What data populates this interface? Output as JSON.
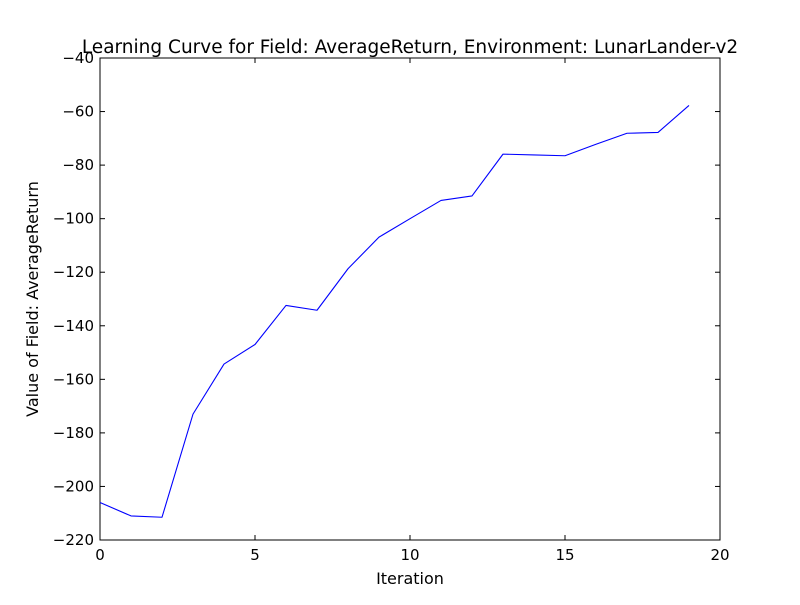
{
  "chart_data": {
    "type": "line",
    "title": "Learning Curve for Field: AverageReturn, Environment: LunarLander-v2",
    "xlabel": "Iteration",
    "ylabel": "Value of Field: AverageReturn",
    "xlim": [
      0,
      20
    ],
    "ylim": [
      -220,
      -40
    ],
    "xticks": [
      0,
      5,
      10,
      15,
      20
    ],
    "yticks": [
      -220,
      -200,
      -180,
      -160,
      -140,
      -120,
      -100,
      -80,
      -60,
      -40
    ],
    "xtick_labels": [
      "0",
      "5",
      "10",
      "15",
      "20"
    ],
    "ytick_labels": [
      "−220",
      "−200",
      "−180",
      "−160",
      "−140",
      "−120",
      "−100",
      "−80",
      "−60",
      "−40"
    ],
    "grid": false,
    "legend": null,
    "series": [
      {
        "color": "#0000ff",
        "x": [
          0,
          1,
          2,
          3,
          4,
          5,
          6,
          7,
          8,
          9,
          10,
          11,
          12,
          13,
          14,
          15,
          16,
          17,
          18,
          19
        ],
        "y": [
          -206,
          -211,
          -211.5,
          -173,
          -154.3,
          -147,
          -132.4,
          -134.2,
          -118.7,
          -106.9,
          -100,
          -93.2,
          -91.5,
          -75.9,
          -76.2,
          -76.5,
          -72.2,
          -68.1,
          -67.8,
          -57.7
        ]
      }
    ]
  }
}
